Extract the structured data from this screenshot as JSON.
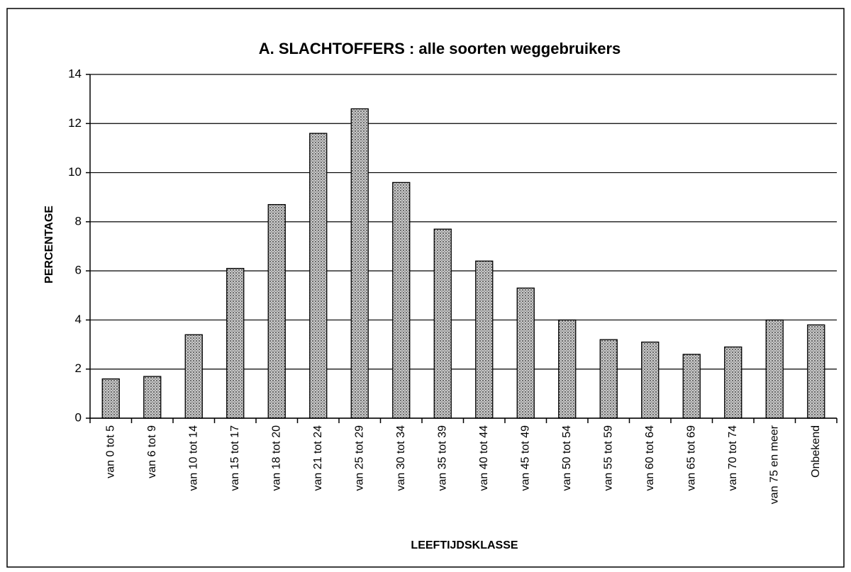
{
  "chart_data": {
    "type": "bar",
    "title": "A. SLACHTOFFERS : alle soorten weggebruikers",
    "x_label": "LEEFTIJDSKLASSE",
    "y_label": "PERCENTAGE",
    "categories": [
      "van 0 tot 5",
      "van 6 tot 9",
      "van 10 tot 14",
      "van 15 tot 17",
      "van 18 tot 20",
      "van 21 tot 24",
      "van 25 tot 29",
      "van 30 tot 34",
      "van 35 tot 39",
      "van 40 tot 44",
      "van 45 tot 49",
      "van 50 tot 54",
      "van 55 tot 59",
      "van 60 tot 64",
      "van 65 tot 69",
      "van 70 tot 74",
      "van 75 en meer",
      "Onbekend"
    ],
    "values": [
      1.6,
      1.7,
      3.4,
      6.1,
      8.7,
      11.6,
      12.6,
      9.6,
      7.7,
      6.4,
      5.3,
      4.0,
      3.2,
      3.1,
      2.6,
      2.9,
      4.0,
      3.8
    ],
    "color": "#a0a0a0",
    "ylim": [
      0,
      14
    ],
    "yticks": [
      0,
      2,
      4,
      6,
      8,
      10,
      12,
      14
    ],
    "grid": true
  }
}
